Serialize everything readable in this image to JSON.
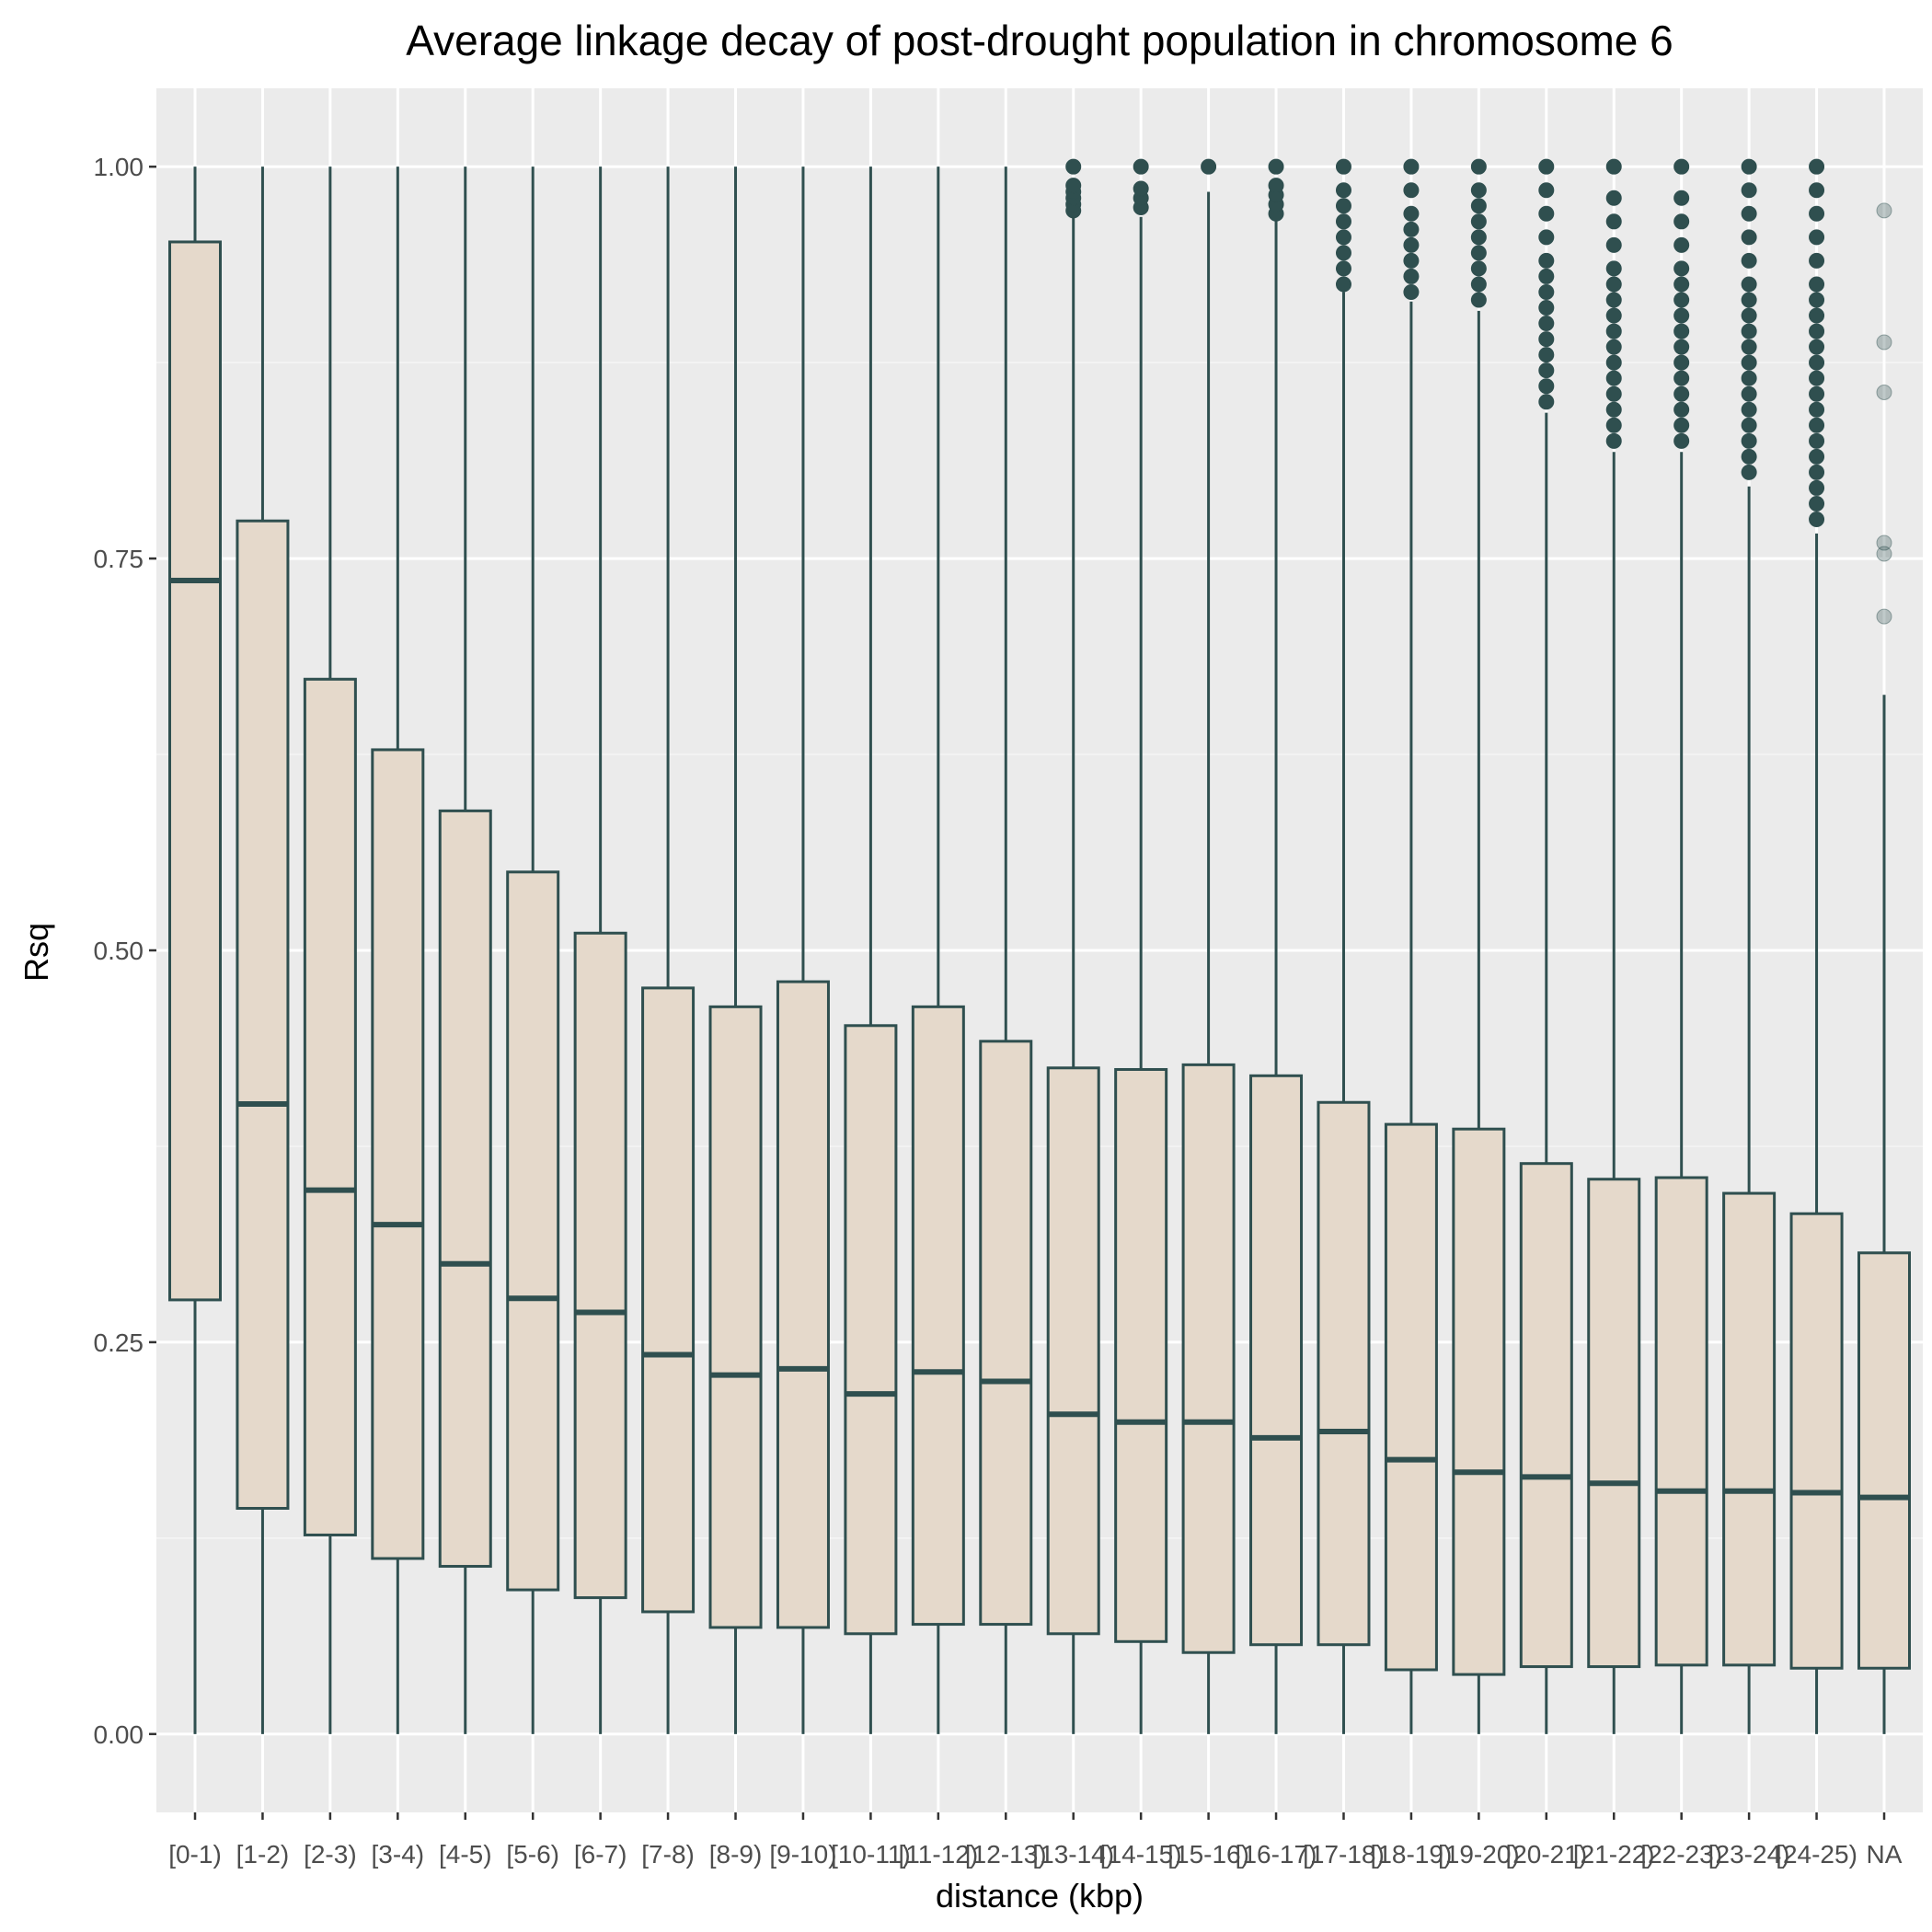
{
  "chart_data": {
    "type": "boxplot",
    "title": "Average linkage decay of post-drought population in chromosome  6",
    "xlabel": "distance (kbp)",
    "ylabel": "Rsq",
    "ylim": [
      -0.05,
      1.05
    ],
    "yticks": [
      0.0,
      0.25,
      0.5,
      0.75,
      1.0
    ],
    "ytick_labels": [
      "0.00",
      "0.25",
      "0.50",
      "0.75",
      "1.00"
    ],
    "categories": [
      "[0-1)",
      "[1-2)",
      "[2-3)",
      "[3-4)",
      "[4-5)",
      "[5-6)",
      "[6-7)",
      "[7-8)",
      "[8-9)",
      "[9-10)",
      "[10-11)",
      "[11-12)",
      "[12-13)",
      "[13-14)",
      "[14-15)",
      "[15-16)",
      "[16-17)",
      "[17-18)",
      "[18-19)",
      "[19-20)",
      "[20-21)",
      "[21-22)",
      "[22-23)",
      "[23-24)",
      "[24-25)",
      "NA"
    ],
    "boxes": [
      {
        "q1": 0.277,
        "median": 0.736,
        "q3": 0.952,
        "whisker_low": 0.0,
        "whisker_high": 1.0,
        "outliers": []
      },
      {
        "q1": 0.144,
        "median": 0.402,
        "q3": 0.774,
        "whisker_low": 0.0,
        "whisker_high": 1.0,
        "outliers": []
      },
      {
        "q1": 0.127,
        "median": 0.347,
        "q3": 0.673,
        "whisker_low": 0.0,
        "whisker_high": 1.0,
        "outliers": []
      },
      {
        "q1": 0.112,
        "median": 0.325,
        "q3": 0.628,
        "whisker_low": 0.0,
        "whisker_high": 1.0,
        "outliers": []
      },
      {
        "q1": 0.107,
        "median": 0.3,
        "q3": 0.589,
        "whisker_low": 0.0,
        "whisker_high": 1.0,
        "outliers": []
      },
      {
        "q1": 0.092,
        "median": 0.278,
        "q3": 0.55,
        "whisker_low": 0.0,
        "whisker_high": 1.0,
        "outliers": []
      },
      {
        "q1": 0.087,
        "median": 0.269,
        "q3": 0.511,
        "whisker_low": 0.0,
        "whisker_high": 1.0,
        "outliers": []
      },
      {
        "q1": 0.078,
        "median": 0.242,
        "q3": 0.476,
        "whisker_low": 0.0,
        "whisker_high": 1.0,
        "outliers": []
      },
      {
        "q1": 0.068,
        "median": 0.229,
        "q3": 0.464,
        "whisker_low": 0.0,
        "whisker_high": 1.0,
        "outliers": []
      },
      {
        "q1": 0.068,
        "median": 0.233,
        "q3": 0.48,
        "whisker_low": 0.0,
        "whisker_high": 1.0,
        "outliers": []
      },
      {
        "q1": 0.064,
        "median": 0.217,
        "q3": 0.452,
        "whisker_low": 0.0,
        "whisker_high": 1.0,
        "outliers": []
      },
      {
        "q1": 0.07,
        "median": 0.231,
        "q3": 0.464,
        "whisker_low": 0.0,
        "whisker_high": 1.0,
        "outliers": []
      },
      {
        "q1": 0.07,
        "median": 0.225,
        "q3": 0.442,
        "whisker_low": 0.0,
        "whisker_high": 1.0,
        "outliers": []
      },
      {
        "q1": 0.064,
        "median": 0.204,
        "q3": 0.425,
        "whisker_low": 0.0,
        "whisker_high": 0.968,
        "outliers": [
          0.972,
          0.976,
          0.98,
          0.984,
          0.988,
          1.0
        ]
      },
      {
        "q1": 0.059,
        "median": 0.199,
        "q3": 0.424,
        "whisker_low": 0.0,
        "whisker_high": 0.968,
        "outliers": [
          0.974,
          0.98,
          0.986,
          1.0
        ]
      },
      {
        "q1": 0.052,
        "median": 0.199,
        "q3": 0.427,
        "whisker_low": 0.0,
        "whisker_high": 0.984,
        "outliers": [
          1.0
        ]
      },
      {
        "q1": 0.057,
        "median": 0.189,
        "q3": 0.42,
        "whisker_low": 0.0,
        "whisker_high": 0.966,
        "outliers": [
          0.97,
          0.976,
          0.982,
          0.988,
          1.0
        ]
      },
      {
        "q1": 0.057,
        "median": 0.193,
        "q3": 0.403,
        "whisker_low": 0.0,
        "whisker_high": 0.92,
        "outliers": [
          0.925,
          0.935,
          0.945,
          0.955,
          0.965,
          0.975,
          0.985,
          1.0
        ]
      },
      {
        "q1": 0.041,
        "median": 0.175,
        "q3": 0.389,
        "whisker_low": 0.0,
        "whisker_high": 0.914,
        "outliers": [
          0.92,
          0.93,
          0.94,
          0.95,
          0.96,
          0.97,
          0.985,
          1.0
        ]
      },
      {
        "q1": 0.038,
        "median": 0.167,
        "q3": 0.386,
        "whisker_low": 0.0,
        "whisker_high": 0.908,
        "outliers": [
          0.915,
          0.925,
          0.935,
          0.945,
          0.955,
          0.965,
          0.975,
          0.985,
          1.0
        ]
      },
      {
        "q1": 0.043,
        "median": 0.164,
        "q3": 0.364,
        "whisker_low": 0.0,
        "whisker_high": 0.843,
        "outliers": [
          0.85,
          0.86,
          0.87,
          0.88,
          0.89,
          0.9,
          0.91,
          0.92,
          0.93,
          0.94,
          0.955,
          0.97,
          0.985,
          1.0
        ]
      },
      {
        "q1": 0.043,
        "median": 0.16,
        "q3": 0.354,
        "whisker_low": 0.0,
        "whisker_high": 0.818,
        "outliers": [
          0.825,
          0.835,
          0.845,
          0.855,
          0.865,
          0.875,
          0.885,
          0.895,
          0.905,
          0.915,
          0.925,
          0.935,
          0.95,
          0.965,
          0.98,
          1.0
        ]
      },
      {
        "q1": 0.044,
        "median": 0.155,
        "q3": 0.355,
        "whisker_low": 0.0,
        "whisker_high": 0.818,
        "outliers": [
          0.825,
          0.835,
          0.845,
          0.855,
          0.865,
          0.875,
          0.885,
          0.895,
          0.905,
          0.915,
          0.925,
          0.935,
          0.95,
          0.965,
          0.98,
          1.0
        ]
      },
      {
        "q1": 0.044,
        "median": 0.155,
        "q3": 0.345,
        "whisker_low": 0.0,
        "whisker_high": 0.796,
        "outliers": [
          0.805,
          0.815,
          0.825,
          0.835,
          0.845,
          0.855,
          0.865,
          0.875,
          0.885,
          0.895,
          0.905,
          0.915,
          0.925,
          0.94,
          0.955,
          0.97,
          0.985,
          1.0
        ]
      },
      {
        "q1": 0.042,
        "median": 0.154,
        "q3": 0.332,
        "whisker_low": 0.0,
        "whisker_high": 0.766,
        "outliers": [
          0.775,
          0.785,
          0.795,
          0.805,
          0.815,
          0.825,
          0.835,
          0.845,
          0.855,
          0.865,
          0.875,
          0.885,
          0.895,
          0.905,
          0.915,
          0.925,
          0.94,
          0.955,
          0.97,
          0.985,
          1.0
        ]
      },
      {
        "q1": 0.042,
        "median": 0.151,
        "q3": 0.307,
        "whisker_low": 0.0,
        "whisker_high": 0.663,
        "outliers": [
          0.713,
          0.753,
          0.76,
          0.856,
          0.888,
          0.972
        ]
      }
    ],
    "grid": true,
    "colors": {
      "panel_bg": "#EBEBEB",
      "grid_major": "#FFFFFF",
      "grid_minor": "#F5F5F5",
      "box_fill": "#E5D9CB",
      "box_line": "#2F4F4F",
      "outlier": "#2F4F4F",
      "tick_text": "#4D4D4D",
      "title_text": "#000000"
    }
  }
}
